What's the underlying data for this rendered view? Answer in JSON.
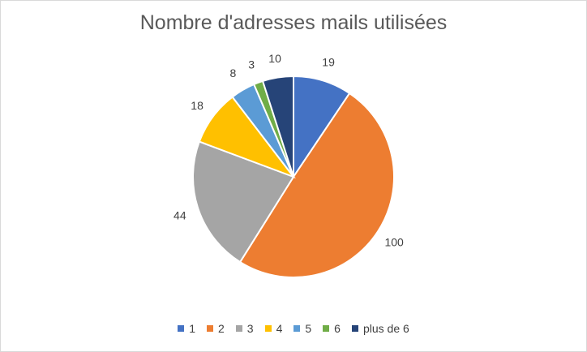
{
  "chart_data": {
    "type": "pie",
    "title": "Nombre d'adresses mails utilisées",
    "categories": [
      "1",
      "2",
      "3",
      "4",
      "5",
      "6",
      "plus de 6"
    ],
    "values": [
      19,
      100,
      44,
      18,
      8,
      3,
      10
    ],
    "colors": [
      "#4472C4",
      "#ED7D31",
      "#A5A5A5",
      "#FFC000",
      "#5B9BD5",
      "#70AD47",
      "#264478"
    ],
    "legend": "bottom",
    "data_labels": [
      "19",
      "100",
      "44",
      "18",
      "8",
      "3",
      "10"
    ]
  }
}
